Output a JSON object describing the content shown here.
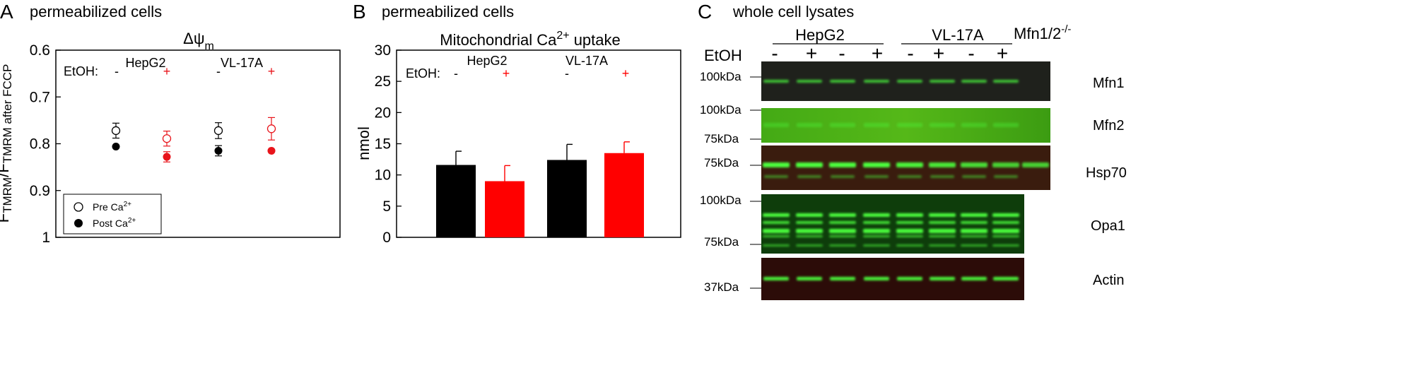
{
  "panel_a": {
    "letter": "A",
    "header": "permeabilized cells",
    "title_main": "Δψ",
    "title_sub": "m",
    "etoh_label": "EtOH:",
    "minus": "-",
    "plus": "+",
    "cell_lines": [
      "HepG2",
      "VL-17A"
    ],
    "legend": {
      "pre_main": "Pre Ca",
      "pre_sup": "2+",
      "post_main": "Post Ca",
      "post_sup": "2+"
    },
    "ylabel_parts": [
      "F",
      "TMRM",
      "/F",
      "TMRM after FCCP"
    ]
  },
  "panel_b": {
    "letter": "B",
    "header": "permeabilized cells",
    "title_pre": "Mitochondrial Ca",
    "title_sup": "2+",
    "title_post": " uptake",
    "etoh_label": "EtOH:",
    "minus": "-",
    "plus": "+",
    "cell_lines": [
      "HepG2",
      "VL-17A"
    ]
  },
  "panel_c": {
    "letter": "C",
    "header": "whole cell lysates",
    "groups": [
      "HepG2",
      "VL-17A"
    ],
    "ko_main": "Mfn1/2",
    "ko_sup": "-/-",
    "etoh_label": "EtOH",
    "lane_signs": [
      "-",
      "+",
      "-",
      "+",
      "-",
      "+",
      "-",
      "+"
    ],
    "blots": [
      {
        "protein": "Mfn1",
        "markers": [
          "100kDa"
        ]
      },
      {
        "protein": "Mfn2",
        "markers": [
          "100kDa",
          "75kDa"
        ]
      },
      {
        "protein": "Hsp70",
        "markers": [
          "75kDa"
        ]
      },
      {
        "protein": "Opa1",
        "markers": [
          "100kDa",
          "75kDa"
        ]
      },
      {
        "protein": "Actin",
        "markers": [
          "37kDa"
        ]
      }
    ],
    "colors": {
      "mfn1_bg": "#1f1f1a",
      "mfn2_bg": "#3fa514",
      "hsp_bg": "#3c1a0c",
      "opa_bg": "#0f3e0c",
      "actin_bg": "#2a0d08",
      "band": "#4bff3c"
    }
  },
  "chart_data": [
    {
      "type": "scatter",
      "title": "Δψm",
      "ylabel": "FTMRM/FTMRM after FCCP",
      "xlabel": "",
      "ylim": [
        0.6,
        1.0
      ],
      "y_inverted": true,
      "yticks": [
        "0.6",
        "0.7",
        "0.8",
        "0.9",
        "1"
      ],
      "categories": [
        "HepG2 -",
        "HepG2 +",
        "VL-17A -",
        "VL-17A +"
      ],
      "series": [
        {
          "name": "Pre Ca2+",
          "marker": "open",
          "values": [
            0.772,
            0.789,
            0.772,
            0.768
          ],
          "errors": [
            0.016,
            0.016,
            0.017,
            0.024
          ],
          "colors": [
            "#000000",
            "#e8141b",
            "#000000",
            "#e8141b"
          ]
        },
        {
          "name": "Post Ca2+",
          "marker": "filled",
          "values": [
            0.806,
            0.828,
            0.815,
            0.815
          ],
          "errors": [
            0,
            0.011,
            0.011,
            0
          ],
          "colors": [
            "#000000",
            "#e8141b",
            "#000000",
            "#e8141b"
          ]
        }
      ]
    },
    {
      "type": "bar",
      "title": "Mitochondrial Ca2+ uptake",
      "ylabel": "nmol",
      "xlabel": "",
      "ylim": [
        0,
        30
      ],
      "yticks": [
        "0",
        "5",
        "10",
        "15",
        "20",
        "25",
        "30"
      ],
      "categories": [
        "HepG2 -",
        "HepG2 +",
        "VL-17A -",
        "VL-17A +"
      ],
      "values": [
        11.6,
        9.0,
        12.4,
        13.5
      ],
      "errors": [
        2.2,
        2.5,
        2.5,
        1.8
      ],
      "colors": [
        "#000000",
        "#ff0000",
        "#000000",
        "#ff0000"
      ]
    }
  ]
}
